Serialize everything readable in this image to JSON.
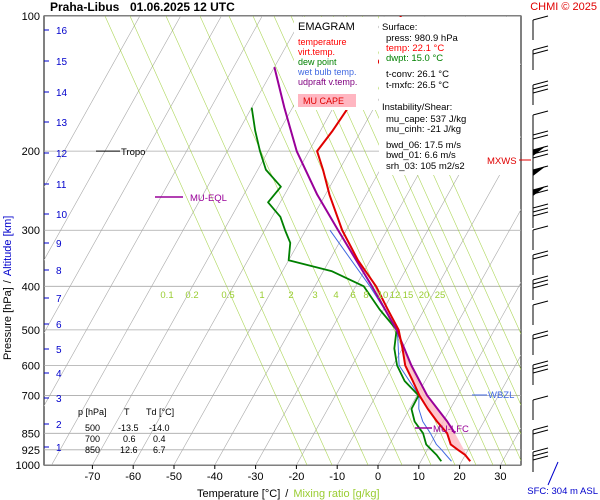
{
  "header": {
    "station": "Praha-Libus",
    "datetime": "01.06.2025 12 UTC",
    "credit": "CHMI © 2025"
  },
  "legend": {
    "title": "EMAGRAM",
    "items": [
      {
        "label": "temperature",
        "color": "#ff0000"
      },
      {
        "label": "virt.temp.",
        "color": "#ff0000"
      },
      {
        "label": "dew point",
        "color": "#008000"
      },
      {
        "label": "wet bulb temp.",
        "color": "#4169e1"
      },
      {
        "label": "udpraft v.temp.",
        "color": "#800080"
      }
    ],
    "cape_label": "MU CAPE",
    "cape_color": "#ffb6c1"
  },
  "info": {
    "surface_title": "Surface:",
    "surface": [
      "press: 980.9 hPa",
      "temp: 22.1 °C",
      "dwpt: 15.0 °C"
    ],
    "surface_colors": [
      "#000000",
      "#ff0000",
      "#008000"
    ],
    "conv": [
      "t-conv: 26.1 °C",
      "t-mxfc: 26.5 °C"
    ],
    "instab_title": "Instability/Shear:",
    "instab": [
      "mu_cape: 537 J/kg",
      "mu_cinh: -21 J/kg"
    ],
    "shear": [
      "bwd_06: 17.5 m/s",
      "bwd_01: 6.6 m/s",
      "srh_03: 105 m2/s2"
    ]
  },
  "table": {
    "headers": [
      "p [hPa]",
      "T",
      "Td [°C]"
    ],
    "rows": [
      [
        "500",
        "-13.5",
        "-14.0"
      ],
      [
        "700",
        "0.6",
        "0.4"
      ],
      [
        "850",
        "12.6",
        "6.7"
      ]
    ]
  },
  "annotations": {
    "tropo": "Tropo",
    "mu_eql": "MU-EQL",
    "mu_lfc": "MU-LFC",
    "wbzl": "WBZL",
    "mxws": "MXWS",
    "sfc": "SFC: 304 m ASL"
  },
  "axes": {
    "ylabel": "Pressure [hPa]",
    "ylabel_sep": "/",
    "ylabel_alt": "Altitude [km]",
    "xlabel": "Temperature [°C]",
    "xlabel_sep": "/",
    "xlabel_mix": "Mixing ratio [g/kg]"
  },
  "colors": {
    "temperature": "#e00000",
    "dewpoint": "#008000",
    "wetbulb": "#4169e1",
    "parcel": "#990099",
    "mixing": "#9acd32",
    "altitude": "#0000cc",
    "grid": "#a9a9a9"
  },
  "chart_data": {
    "type": "line",
    "x_ticks": [
      -70,
      -60,
      -50,
      -40,
      -30,
      -20,
      -10,
      0,
      10,
      20,
      30
    ],
    "p_ticks": [
      100,
      200,
      300,
      400,
      500,
      600,
      700,
      850,
      925,
      1000
    ],
    "alt_ticks": [
      1,
      2,
      3,
      4,
      5,
      6,
      7,
      8,
      9,
      10,
      11,
      12,
      13,
      14,
      15,
      16
    ],
    "mixing_ratio_ticks": [
      "0.1",
      "0.2",
      "0.5",
      "1",
      "2",
      "3",
      "4",
      "6",
      "8",
      "10",
      "12",
      "15",
      "20",
      "25"
    ],
    "series": [
      {
        "name": "temperature",
        "points": [
          [
            981,
            22.1
          ],
          [
            950,
            20
          ],
          [
            925,
            17.5
          ],
          [
            900,
            15
          ],
          [
            850,
            12.6
          ],
          [
            800,
            8.5
          ],
          [
            750,
            4.5
          ],
          [
            700,
            0.6
          ],
          [
            650,
            -3
          ],
          [
            600,
            -7
          ],
          [
            550,
            -10
          ],
          [
            500,
            -13.5
          ],
          [
            450,
            -19
          ],
          [
            400,
            -25
          ],
          [
            350,
            -33
          ],
          [
            300,
            -41
          ],
          [
            250,
            -49
          ],
          [
            220,
            -54
          ],
          [
            200,
            -58
          ],
          [
            180,
            -57
          ],
          [
            150,
            -56
          ],
          [
            120,
            -55
          ],
          [
            100,
            -56
          ]
        ]
      },
      {
        "name": "dew point",
        "points": [
          [
            981,
            15
          ],
          [
            950,
            13
          ],
          [
            925,
            11
          ],
          [
            900,
            9
          ],
          [
            850,
            6.7
          ],
          [
            800,
            3
          ],
          [
            750,
            0.5
          ],
          [
            700,
            0.4
          ],
          [
            650,
            -5
          ],
          [
            600,
            -9
          ],
          [
            550,
            -12
          ],
          [
            500,
            -14
          ],
          [
            450,
            -21
          ],
          [
            400,
            -28
          ],
          [
            370,
            -38
          ],
          [
            350,
            -50
          ],
          [
            320,
            -52
          ],
          [
            300,
            -55
          ],
          [
            280,
            -58
          ],
          [
            260,
            -63
          ],
          [
            240,
            -62
          ],
          [
            220,
            -68
          ],
          [
            200,
            -72
          ],
          [
            180,
            -76
          ],
          [
            160,
            -80
          ]
        ]
      },
      {
        "name": "wet bulb temp.",
        "points": [
          [
            981,
            17.5
          ],
          [
            950,
            15.3
          ],
          [
            925,
            13.5
          ],
          [
            900,
            11.5
          ],
          [
            850,
            8.5
          ],
          [
            800,
            5
          ],
          [
            750,
            2.3
          ],
          [
            700,
            0.5
          ],
          [
            600,
            -8.5
          ],
          [
            500,
            -13.8
          ],
          [
            400,
            -26.5
          ],
          [
            300,
            -44
          ]
        ]
      },
      {
        "name": "udpraft v.temp.",
        "points": [
          [
            850,
            14.5
          ],
          [
            800,
            11
          ],
          [
            700,
            2.5
          ],
          [
            600,
            -5.5
          ],
          [
            500,
            -14
          ],
          [
            400,
            -26
          ],
          [
            300,
            -42
          ],
          [
            250,
            -52
          ],
          [
            200,
            -63
          ],
          [
            160,
            -72
          ],
          [
            130,
            -80
          ]
        ]
      }
    ]
  }
}
